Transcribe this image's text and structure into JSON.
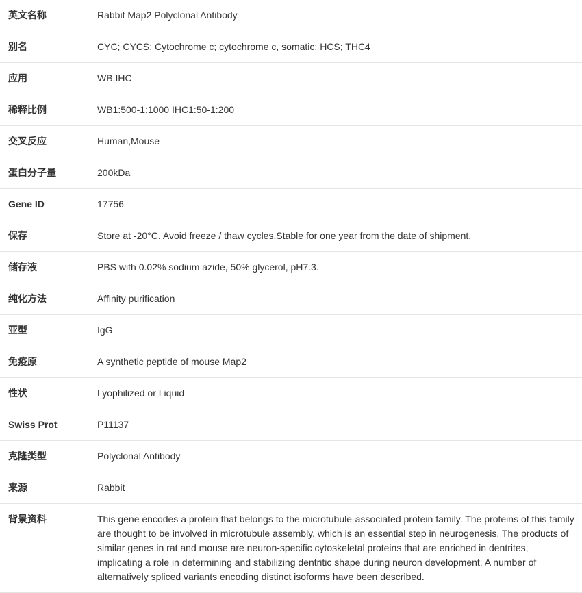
{
  "table": {
    "border_color": "#e5e5e5",
    "text_color": "#333333",
    "font_size": 14,
    "label_width": 130,
    "rows": [
      {
        "label": "英文名称",
        "value": "Rabbit Map2 Polyclonal Antibody"
      },
      {
        "label": "别名",
        "value": "CYC; CYCS; Cytochrome c; cytochrome c, somatic; HCS; THC4"
      },
      {
        "label": "应用",
        "value": "WB,IHC"
      },
      {
        "label": "稀释比例",
        "value": "WB1:500-1:1000 IHC1:50-1:200"
      },
      {
        "label": "交叉反应",
        "value": "Human,Mouse"
      },
      {
        "label": "蛋白分子量",
        "value": "200kDa"
      },
      {
        "label": "Gene ID",
        "value": "17756"
      },
      {
        "label": "保存",
        "value": "Store at -20°C. Avoid freeze / thaw cycles.Stable for one year from the date of shipment."
      },
      {
        "label": "储存液",
        "value": "PBS with 0.02% sodium azide, 50% glycerol, pH7.3."
      },
      {
        "label": "纯化方法",
        "value": "Affinity purification"
      },
      {
        "label": "亚型",
        "value": "IgG"
      },
      {
        "label": "免疫原",
        "value": "A synthetic peptide of mouse Map2"
      },
      {
        "label": "性状",
        "value": "Lyophilized or Liquid"
      },
      {
        "label": "Swiss Prot",
        "value": "P11137"
      },
      {
        "label": "克隆类型",
        "value": "Polyclonal Antibody"
      },
      {
        "label": "来源",
        "value": "Rabbit"
      },
      {
        "label": "背景资料",
        "value": "This gene encodes a protein that belongs to the microtubule-associated protein family. The proteins of this family are thought to be involved in microtubule assembly, which is an essential step in neurogenesis. The products of similar genes in rat and mouse are neuron-specific cytoskeletal proteins that are enriched in dentrites, implicating a role in determining and stabilizing dentritic shape during neuron development. A number of alternatively spliced variants encoding distinct isoforms have been described."
      }
    ]
  }
}
